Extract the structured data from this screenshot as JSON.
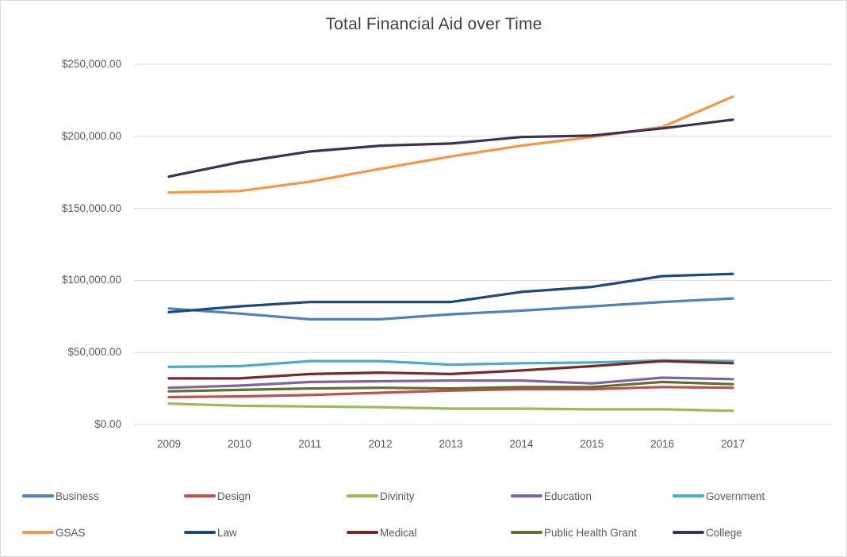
{
  "chart_data": {
    "type": "line",
    "title": "Total Financial Aid over Time",
    "xlabel": "",
    "ylabel": "",
    "ylim": [
      0,
      250000
    ],
    "grid": "horizontal",
    "legend_position": "bottom",
    "categories": [
      "2009",
      "2010",
      "2011",
      "2012",
      "2013",
      "2014",
      "2015",
      "2016",
      "2017"
    ],
    "y_ticks": [
      {
        "label": "$250,000.00",
        "value": 250000
      },
      {
        "label": "$200,000.00",
        "value": 200000
      },
      {
        "label": "$150,000.00",
        "value": 150000
      },
      {
        "label": "$100,000.00",
        "value": 100000
      },
      {
        "label": "$50,000.00",
        "value": 50000
      },
      {
        "label": "$0.00",
        "value": 0
      }
    ],
    "series": [
      {
        "name": "Business",
        "color": "#4F81BD",
        "values": [
          80500,
          77000,
          73000,
          73000,
          76500,
          79000,
          82000,
          85000,
          87500
        ]
      },
      {
        "name": "Design",
        "color": "#C0504D",
        "values": [
          19000,
          19500,
          20500,
          22000,
          23500,
          24500,
          24500,
          26000,
          25500
        ]
      },
      {
        "name": "Divinity",
        "color": "#9BBB59",
        "values": [
          14500,
          13000,
          12500,
          12000,
          11000,
          11000,
          10500,
          10500,
          9500
        ]
      },
      {
        "name": "Education",
        "color": "#8064A2",
        "values": [
          25500,
          27000,
          29500,
          30000,
          30500,
          30500,
          28500,
          32500,
          31500
        ]
      },
      {
        "name": "Government",
        "color": "#4BACC6",
        "values": [
          40000,
          40500,
          44000,
          44000,
          41500,
          42500,
          43000,
          44500,
          44000
        ]
      },
      {
        "name": "GSAS",
        "color": "#F79646",
        "values": [
          161000,
          162000,
          168500,
          177500,
          186000,
          193500,
          199500,
          206500,
          227500
        ]
      },
      {
        "name": "Law",
        "color": "#1F497D",
        "values": [
          78000,
          82000,
          85000,
          85000,
          85000,
          92000,
          95500,
          103000,
          104500
        ]
      },
      {
        "name": "Medical",
        "color": "#7B2927",
        "values": [
          32000,
          32000,
          35000,
          36000,
          35000,
          37500,
          40500,
          44000,
          42500
        ]
      },
      {
        "name": "Public Health Grant",
        "color": "#5F7030",
        "values": [
          23000,
          24000,
          25000,
          25500,
          25000,
          26000,
          26000,
          29500,
          28000
        ]
      },
      {
        "name": "College",
        "color": "#403152",
        "values": [
          172000,
          182000,
          189500,
          193500,
          195000,
          199500,
          200500,
          205500,
          211500
        ]
      }
    ]
  }
}
